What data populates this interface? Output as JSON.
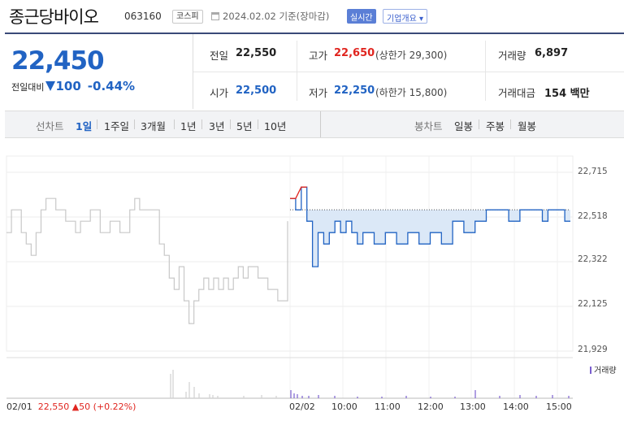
{
  "header": {
    "name": "종근당바이오",
    "code": "063160",
    "market_badge": "코스피",
    "date_info": "2024.02.02  기준(장마감)",
    "live_button": "실시간",
    "company_button": "기업개요 ▾"
  },
  "summary": {
    "price": "22,450",
    "change_label": "전일대비",
    "change_value": "100",
    "change_pct": "-0.44%",
    "prev_close_label": "전일",
    "prev_close": "22,550",
    "high_label": "고가",
    "high": "22,650",
    "upper_limit": "(상한가 29,300)",
    "volume_label": "거래량",
    "volume": "6,897",
    "open_label": "시가",
    "open": "22,500",
    "low_label": "저가",
    "low": "22,250",
    "lower_limit": "(하한가 15,800)",
    "trade_value_label": "거래대금",
    "trade_value": "154",
    "trade_value_unit": "백만"
  },
  "periods": {
    "label": "선차트",
    "items": [
      "1일",
      "1주일",
      "3개월",
      "1년",
      "3년",
      "5년",
      "10년"
    ],
    "selected": "1일"
  },
  "candles": {
    "label": "봉차트",
    "items": [
      "일봉",
      "주봉",
      "월봉"
    ]
  },
  "colors": {
    "up": "#e0251f",
    "down": "#2163c3",
    "prev_line": "#c8c8c8",
    "fill": "#dbe8f7",
    "volume": "#7a5fcf"
  },
  "footer": {
    "prev_date": "02/01",
    "prev_price": "22,550",
    "prev_change": "▲50 (+0.22%)",
    "volume_legend": "거래량"
  },
  "chart_data": {
    "type": "line",
    "y_ticks": [
      "22,715",
      "22,518",
      "22,322",
      "22,125",
      "21,929"
    ],
    "ylim": [
      21929,
      22715
    ],
    "x_ticks": [
      "02/02",
      "10:00",
      "11:00",
      "12:00",
      "13:00",
      "14:00",
      "15:00"
    ],
    "reference_line": 22550,
    "series": [
      {
        "name": "02/01",
        "values": [
          22450,
          22550,
          22550,
          22450,
          22400,
          22350,
          22450,
          22550,
          22600,
          22600,
          22550,
          22550,
          22500,
          22500,
          22450,
          22500,
          22500,
          22550,
          22550,
          22450,
          22450,
          22500,
          22500,
          22450,
          22450,
          22550,
          22600,
          22550,
          22550,
          22550,
          22550,
          22400,
          22350,
          22250,
          22200,
          22300,
          22150,
          22050,
          22150,
          22200,
          22250,
          22200,
          22250,
          22200,
          22250,
          22200,
          22250,
          22300,
          22250,
          22300,
          22300,
          22250,
          22250,
          22200,
          22200,
          22150,
          22150,
          22500
        ]
      },
      {
        "name": "02/02",
        "values": [
          22600,
          22550,
          22650,
          22500,
          22300,
          22450,
          22400,
          22450,
          22500,
          22450,
          22500,
          22450,
          22400,
          22450,
          22450,
          22400,
          22400,
          22450,
          22450,
          22400,
          22400,
          22450,
          22450,
          22400,
          22400,
          22450,
          22450,
          22400,
          22400,
          22500,
          22500,
          22450,
          22450,
          22500,
          22500,
          22550,
          22550,
          22550,
          22550,
          22500,
          22500,
          22550,
          22550,
          22550,
          22550,
          22500,
          22550,
          22550,
          22550,
          22500,
          22500
        ]
      }
    ]
  }
}
